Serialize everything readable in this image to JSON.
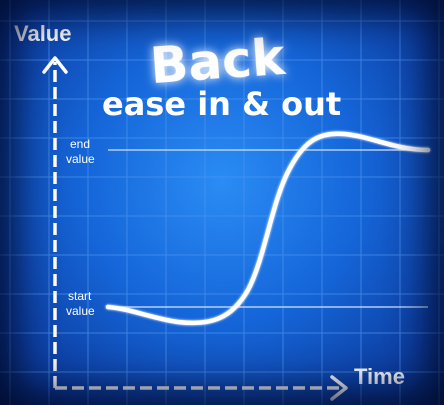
{
  "title": "Back",
  "subtitle": "ease in & out",
  "axes": {
    "y_label": "Value",
    "x_label": "Time"
  },
  "labels": {
    "end_line1": "end",
    "end_line2": "value",
    "start_line1": "start",
    "start_line2": "value"
  },
  "colors": {
    "background": "#1565d8",
    "grid": "#4d94ee",
    "line": "#ffffff"
  }
}
